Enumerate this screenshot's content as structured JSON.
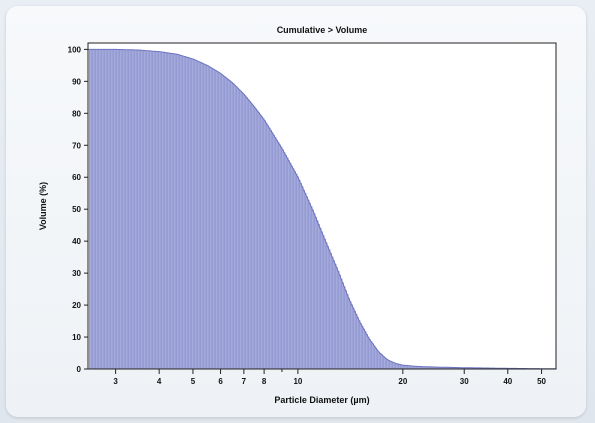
{
  "chart_data": {
    "type": "area",
    "title": "Cumulative > Volume",
    "xlabel": "Particle Diameter (µm)",
    "ylabel": "Volume (%)",
    "x_scale": "log",
    "xlim": [
      2.5,
      55
    ],
    "ylim": [
      0,
      102
    ],
    "x_ticks": [
      {
        "value": 3,
        "label": "3"
      },
      {
        "value": 4,
        "label": "4"
      },
      {
        "value": 5,
        "label": "5"
      },
      {
        "value": 6,
        "label": "6"
      },
      {
        "value": 7,
        "label": "7"
      },
      {
        "value": 8,
        "label": "8"
      },
      {
        "value": 10,
        "label": "10"
      },
      {
        "value": 20,
        "label": "20"
      },
      {
        "value": 30,
        "label": "30"
      },
      {
        "value": 40,
        "label": "40"
      },
      {
        "value": 50,
        "label": "50"
      }
    ],
    "y_ticks": [
      {
        "value": 0,
        "label": "0"
      },
      {
        "value": 10,
        "label": "10"
      },
      {
        "value": 20,
        "label": "20"
      },
      {
        "value": 30,
        "label": "30"
      },
      {
        "value": 40,
        "label": "40"
      },
      {
        "value": 50,
        "label": "50"
      },
      {
        "value": 60,
        "label": "60"
      },
      {
        "value": 70,
        "label": "70"
      },
      {
        "value": 80,
        "label": "80"
      },
      {
        "value": 90,
        "label": "90"
      },
      {
        "value": 100,
        "label": "100"
      }
    ],
    "series": [
      {
        "color": "#8c93d0",
        "points": [
          [
            2.5,
            100
          ],
          [
            3.0,
            100
          ],
          [
            3.5,
            99.8
          ],
          [
            4.0,
            99.3
          ],
          [
            4.5,
            98.5
          ],
          [
            5.0,
            97
          ],
          [
            5.5,
            95
          ],
          [
            6.0,
            92.5
          ],
          [
            6.5,
            89.5
          ],
          [
            7.0,
            86
          ],
          [
            7.5,
            82
          ],
          [
            8.0,
            78
          ],
          [
            9.0,
            69
          ],
          [
            10.0,
            60
          ],
          [
            11.0,
            50
          ],
          [
            12.0,
            40
          ],
          [
            13.0,
            31
          ],
          [
            14.0,
            22
          ],
          [
            15.0,
            15
          ],
          [
            16.0,
            9.5
          ],
          [
            17.0,
            5.5
          ],
          [
            18.0,
            3
          ],
          [
            19.0,
            1.8
          ],
          [
            20.0,
            1.2
          ],
          [
            22.0,
            0.8
          ],
          [
            25.0,
            0.6
          ],
          [
            30.0,
            0.4
          ],
          [
            35.0,
            0.3
          ],
          [
            40.0,
            0.2
          ],
          [
            50.0,
            0.1
          ],
          [
            55.0,
            0.1
          ]
        ]
      }
    ]
  }
}
